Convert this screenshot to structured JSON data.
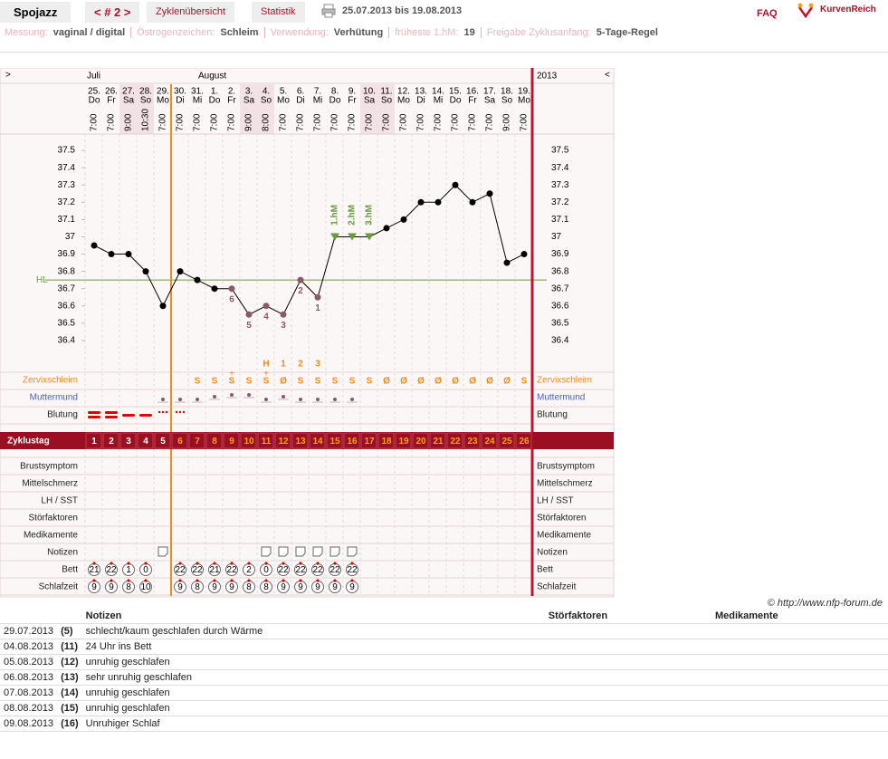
{
  "header": {
    "title": "Spojazz",
    "cycle_nav": "< # 2 >",
    "tabs": [
      "Zyklenübersicht",
      "Statistik"
    ],
    "date_range": "25.07.2013 bis 19.08.2013",
    "faq": "FAQ",
    "brand": "KurvenReich"
  },
  "settings": [
    {
      "label": "Messung:",
      "value": "vaginal / digital"
    },
    {
      "label": "Östrogenzeichen:",
      "value": "Schleim"
    },
    {
      "label": "Verwendung:",
      "value": "Verhütung"
    },
    {
      "label": "früheste 1.hM:",
      "value": "19"
    },
    {
      "label": "Freigabe Zyklusanfang:",
      "value": "5-Tage-Regel"
    }
  ],
  "chart_data": {
    "type": "line",
    "nav_prev": ">",
    "nav_next": "<",
    "months": [
      "Juli",
      "August"
    ],
    "year": "2013",
    "dates": [
      "25.",
      "26.",
      "27.",
      "28.",
      "29.",
      "30.",
      "31.",
      "1.",
      "2.",
      "3.",
      "4.",
      "5.",
      "6.",
      "7.",
      "8.",
      "9.",
      "10.",
      "11.",
      "12.",
      "13.",
      "14.",
      "15.",
      "16.",
      "17.",
      "18.",
      "19."
    ],
    "weekdays": [
      "Do",
      "Fr",
      "Sa",
      "So",
      "Mo",
      "Di",
      "Mi",
      "Do",
      "Fr",
      "Sa",
      "So",
      "Mo",
      "Di",
      "Mi",
      "Do",
      "Fr",
      "Sa",
      "So",
      "Mo",
      "Di",
      "Mi",
      "Do",
      "Fr",
      "Sa",
      "So",
      "Mo"
    ],
    "times": [
      "7:00",
      "7:00",
      "9:00",
      "10:30",
      "7:00",
      "7:00",
      "7:00",
      "7:00",
      "7:00",
      "9:00",
      "8:00",
      "7:00",
      "7:00",
      "7:00",
      "7:00",
      "7:00",
      "7:00",
      "7:00",
      "7:00",
      "7:00",
      "7:00",
      "7:00",
      "7:00",
      "7:00",
      "9:00",
      "7:00"
    ],
    "values": [
      36.95,
      36.9,
      36.9,
      36.8,
      36.6,
      36.8,
      36.75,
      36.7,
      36.7,
      36.55,
      36.6,
      36.55,
      36.75,
      36.65,
      37,
      37,
      37,
      37.05,
      37.1,
      37.2,
      37.2,
      37.3,
      37.2,
      37.25,
      36.85,
      36.9
    ],
    "color": "#000000",
    "excluded_color": "#8a5a66",
    "point_labels": [
      null,
      null,
      null,
      null,
      null,
      null,
      null,
      null,
      "6",
      "5",
      "4",
      "3",
      "2",
      "1",
      null,
      null,
      null,
      null,
      null,
      null,
      null,
      null,
      null,
      null,
      null,
      null
    ],
    "hm_labels": [
      null,
      null,
      null,
      null,
      null,
      null,
      null,
      null,
      null,
      null,
      null,
      null,
      null,
      null,
      "1.hM",
      "2.hM",
      "3.hM",
      null,
      null,
      null,
      null,
      null,
      null,
      null,
      null,
      null
    ],
    "cover_line": {
      "label": "HL",
      "value": 36.75,
      "color": "#6a9a3a"
    },
    "ylim": [
      36.3,
      37.6
    ],
    "yticks": [
      36.4,
      36.5,
      36.6,
      36.7,
      36.8,
      36.9,
      37,
      37.1,
      37.2,
      37.3,
      37.4,
      37.5
    ],
    "peak_row": [
      null,
      null,
      null,
      null,
      null,
      null,
      null,
      null,
      null,
      null,
      "H",
      "1",
      "2",
      "3",
      null,
      null,
      null,
      null,
      null,
      null,
      null,
      null,
      null,
      null,
      null,
      null
    ]
  },
  "rows": {
    "zervix": {
      "label": "Zervixschleim",
      "values": [
        null,
        null,
        null,
        null,
        null,
        null,
        "S",
        "S",
        "S",
        "S",
        "S",
        "Ø",
        "S",
        "S",
        "S",
        "S",
        "S",
        "Ø",
        "Ø",
        "Ø",
        "Ø",
        "Ø",
        "Ø",
        "Ø",
        "Ø",
        "S"
      ],
      "plus": [
        null,
        null,
        null,
        null,
        null,
        null,
        null,
        null,
        "+",
        null,
        "+",
        null,
        null,
        null,
        null,
        null,
        null,
        null,
        null,
        null,
        null,
        null,
        null,
        null,
        null,
        null
      ]
    },
    "muttermund": {
      "label": "Muttermund"
    },
    "blutung": {
      "label": "Blutung"
    },
    "zyklustag": {
      "label": "Zyklustag",
      "values": [
        1,
        2,
        3,
        4,
        5,
        6,
        7,
        8,
        9,
        10,
        11,
        12,
        13,
        14,
        15,
        16,
        17,
        18,
        19,
        20,
        21,
        22,
        23,
        24,
        25,
        26
      ]
    },
    "symptoms": [
      "Brustsymptom",
      "Mittelschmerz",
      "LH / SST",
      "Störfaktoren",
      "Medikamente"
    ],
    "notizen": {
      "label": "Notizen"
    },
    "bett": {
      "label": "Bett",
      "values": [
        21,
        22,
        1,
        0,
        null,
        22,
        22,
        21,
        22,
        2,
        0,
        22,
        22,
        22,
        22,
        22,
        null,
        null,
        null,
        null,
        null,
        null,
        null,
        null,
        null,
        null
      ]
    },
    "schlafzeit": {
      "label": "Schlafzeit",
      "values": [
        9,
        9,
        8,
        10,
        null,
        9,
        8,
        9,
        9,
        8,
        8,
        9,
        9,
        9,
        9,
        9,
        null,
        null,
        null,
        null,
        null,
        null,
        null,
        null,
        null,
        null
      ]
    }
  },
  "copyright": "© http://www.nfp-forum.de",
  "notes_table": {
    "headers": [
      "Notizen",
      "Störfaktoren",
      "Medikamente"
    ],
    "rows": [
      [
        "29.07.2013",
        "(5)",
        "schlecht/kaum geschlafen durch Wärme"
      ],
      [
        "04.08.2013",
        "(11)",
        "24 Uhr ins Bett"
      ],
      [
        "05.08.2013",
        "(12)",
        "unruhig geschlafen"
      ],
      [
        "06.08.2013",
        "(13)",
        "sehr unruhig geschlafen"
      ],
      [
        "07.08.2013",
        "(14)",
        "unruhig geschlafen"
      ],
      [
        "08.08.2013",
        "(15)",
        "unruhig geschlafen"
      ],
      [
        "09.08.2013",
        "(16)",
        "Unruhiger Schlaf"
      ]
    ]
  }
}
